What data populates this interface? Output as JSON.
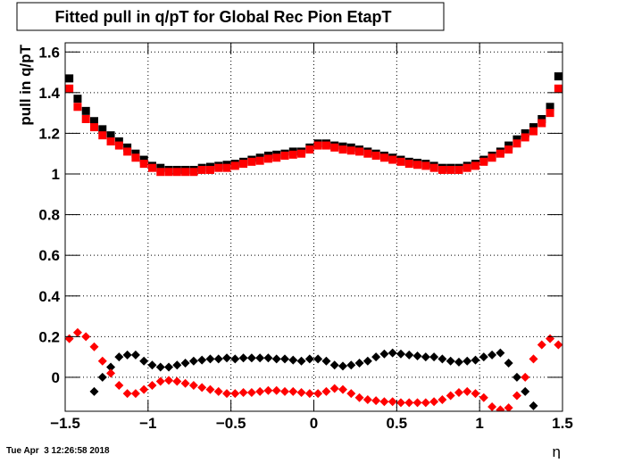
{
  "chart_data": {
    "type": "scatter",
    "title": "Fitted pull in q/pT for Global Rec Pion EtapT",
    "y_label": "pull in q/pT",
    "x_label": "η",
    "footer": "Tue Apr  3 12:26:58 2018",
    "grid": true,
    "xlim": [
      -1.5,
      1.5
    ],
    "xticks": [
      -1.5,
      -1,
      -0.5,
      0,
      0.5,
      1,
      1.5
    ],
    "ylim": [
      -0.167,
      1.645
    ],
    "yticks": [
      0,
      0.2,
      0.4,
      0.6,
      0.8,
      1,
      1.2,
      1.4,
      1.6
    ],
    "x": [
      -1.475,
      -1.425,
      -1.375,
      -1.325,
      -1.275,
      -1.225,
      -1.175,
      -1.125,
      -1.075,
      -1.025,
      -0.975,
      -0.925,
      -0.875,
      -0.825,
      -0.775,
      -0.725,
      -0.675,
      -0.625,
      -0.575,
      -0.525,
      -0.475,
      -0.425,
      -0.375,
      -0.325,
      -0.275,
      -0.225,
      -0.175,
      -0.125,
      -0.075,
      -0.025,
      0.025,
      0.075,
      0.125,
      0.175,
      0.225,
      0.275,
      0.325,
      0.375,
      0.425,
      0.475,
      0.525,
      0.575,
      0.625,
      0.675,
      0.725,
      0.775,
      0.825,
      0.875,
      0.925,
      0.975,
      1.025,
      1.075,
      1.125,
      1.175,
      1.225,
      1.275,
      1.325,
      1.375,
      1.425,
      1.475
    ],
    "series": [
      {
        "color": "#000000",
        "marker": "square",
        "values": [
          1.47,
          1.37,
          1.31,
          1.26,
          1.22,
          1.19,
          1.16,
          1.13,
          1.1,
          1.07,
          1.04,
          1.03,
          1.02,
          1.02,
          1.02,
          1.02,
          1.03,
          1.035,
          1.04,
          1.045,
          1.05,
          1.06,
          1.07,
          1.08,
          1.09,
          1.095,
          1.1,
          1.11,
          1.11,
          1.13,
          1.15,
          1.15,
          1.14,
          1.135,
          1.13,
          1.12,
          1.11,
          1.1,
          1.09,
          1.08,
          1.07,
          1.06,
          1.055,
          1.05,
          1.04,
          1.03,
          1.03,
          1.03,
          1.04,
          1.05,
          1.07,
          1.09,
          1.11,
          1.14,
          1.17,
          1.2,
          1.23,
          1.27,
          1.33,
          1.48
        ]
      },
      {
        "color": "#ff0000",
        "marker": "square",
        "values": [
          1.42,
          1.33,
          1.27,
          1.23,
          1.19,
          1.16,
          1.14,
          1.11,
          1.08,
          1.05,
          1.03,
          1.01,
          1.01,
          1.01,
          1.01,
          1.01,
          1.02,
          1.02,
          1.03,
          1.03,
          1.04,
          1.05,
          1.06,
          1.065,
          1.075,
          1.08,
          1.09,
          1.095,
          1.1,
          1.12,
          1.14,
          1.14,
          1.13,
          1.12,
          1.115,
          1.11,
          1.1,
          1.09,
          1.08,
          1.07,
          1.06,
          1.05,
          1.045,
          1.04,
          1.03,
          1.02,
          1.02,
          1.02,
          1.03,
          1.04,
          1.06,
          1.08,
          1.1,
          1.12,
          1.15,
          1.18,
          1.21,
          1.25,
          1.3,
          1.42
        ]
      },
      {
        "color": "#000000",
        "marker": "diamond",
        "values": [
          null,
          null,
          null,
          -0.07,
          0.0,
          0.05,
          0.1,
          0.11,
          0.11,
          0.08,
          0.06,
          0.05,
          0.05,
          0.06,
          0.07,
          0.08,
          0.085,
          0.09,
          0.09,
          0.095,
          0.09,
          0.095,
          0.095,
          0.095,
          0.095,
          0.09,
          0.09,
          0.085,
          0.08,
          0.09,
          0.09,
          0.08,
          0.06,
          0.055,
          0.06,
          0.07,
          0.08,
          0.1,
          0.115,
          0.12,
          0.115,
          0.11,
          0.105,
          0.1,
          0.1,
          0.09,
          0.08,
          0.075,
          0.08,
          0.085,
          0.1,
          0.11,
          0.12,
          0.07,
          0.0,
          -0.07,
          -0.14,
          null,
          null,
          null
        ]
      },
      {
        "color": "#ff0000",
        "marker": "diamond",
        "values": [
          0.19,
          0.22,
          0.2,
          0.15,
          0.08,
          0.02,
          -0.04,
          -0.08,
          -0.08,
          -0.06,
          -0.04,
          -0.02,
          -0.015,
          -0.02,
          -0.03,
          -0.04,
          -0.05,
          -0.06,
          -0.07,
          -0.08,
          -0.08,
          -0.075,
          -0.075,
          -0.07,
          -0.065,
          -0.065,
          -0.07,
          -0.07,
          -0.075,
          -0.08,
          -0.08,
          -0.07,
          -0.055,
          -0.06,
          -0.08,
          -0.1,
          -0.11,
          -0.115,
          -0.12,
          -0.12,
          -0.125,
          -0.125,
          -0.125,
          -0.125,
          -0.12,
          -0.11,
          -0.09,
          -0.075,
          -0.07,
          -0.08,
          -0.1,
          -0.145,
          -0.16,
          -0.15,
          -0.09,
          0.0,
          0.09,
          0.16,
          0.19,
          0.16
        ]
      }
    ]
  }
}
